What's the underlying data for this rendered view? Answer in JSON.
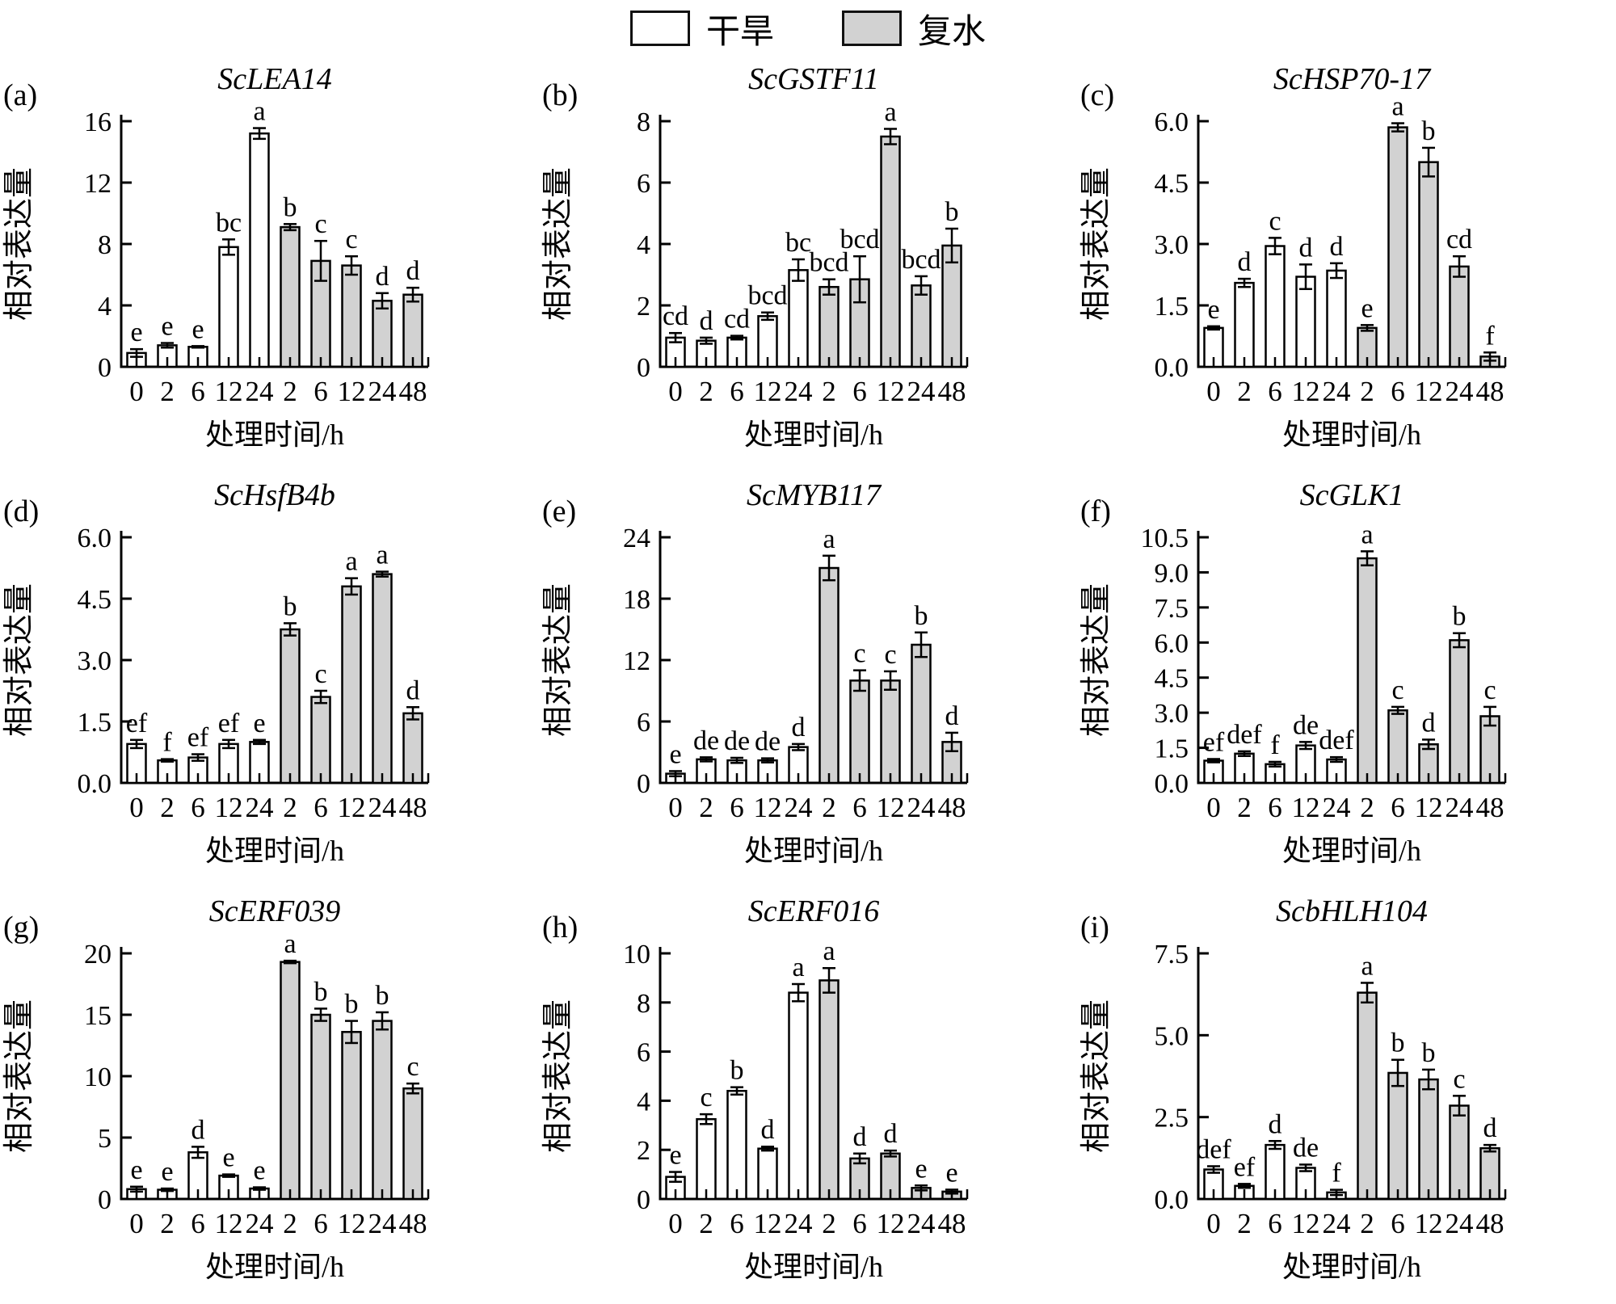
{
  "legend": {
    "items": [
      {
        "label": "干旱",
        "fill": "#ffffff"
      },
      {
        "label": "复水",
        "fill": "#d2d2d2"
      }
    ]
  },
  "shared": {
    "ylabel": "相对表达量",
    "xlabel": "处理时间/h"
  },
  "colors": {
    "bar_drought": "#ffffff",
    "bar_rewater": "#d2d2d2",
    "axis": "#000000"
  },
  "chart_data": [
    {
      "type": "bar",
      "panel": "(a)",
      "title": "ScLEA14",
      "ymax": 16,
      "yticks": [
        0,
        4,
        8,
        12,
        16
      ],
      "ytick_labels": [
        "0",
        "4",
        "8",
        "12",
        "16"
      ],
      "series": [
        {
          "name": "干旱",
          "x": [
            "0",
            "2",
            "6",
            "12",
            "24"
          ],
          "values": [
            0.9,
            1.4,
            1.3,
            7.8,
            15.2
          ],
          "errors": [
            0.25,
            0.15,
            0.05,
            0.5,
            0.35
          ],
          "letters": [
            "e",
            "e",
            "e",
            "bc",
            "a"
          ]
        },
        {
          "name": "复水",
          "x": [
            "2",
            "6",
            "12",
            "24",
            "48"
          ],
          "values": [
            9.1,
            6.9,
            6.6,
            4.3,
            4.7
          ],
          "errors": [
            0.2,
            1.3,
            0.6,
            0.5,
            0.45
          ],
          "letters": [
            "b",
            "c",
            "c",
            "d",
            "d"
          ]
        }
      ]
    },
    {
      "type": "bar",
      "panel": "(b)",
      "title": "ScGSTF11",
      "ymax": 8,
      "yticks": [
        0,
        2,
        4,
        6,
        8
      ],
      "ytick_labels": [
        "0",
        "2",
        "4",
        "6",
        "8"
      ],
      "series": [
        {
          "name": "干旱",
          "x": [
            "0",
            "2",
            "6",
            "12",
            "24"
          ],
          "values": [
            0.95,
            0.85,
            0.95,
            1.65,
            3.15
          ],
          "errors": [
            0.15,
            0.1,
            0.06,
            0.12,
            0.35
          ],
          "letters": [
            "cd",
            "d",
            "cd",
            "bcd",
            "bc"
          ]
        },
        {
          "name": "复水",
          "x": [
            "2",
            "6",
            "12",
            "24",
            "48"
          ],
          "values": [
            2.6,
            2.85,
            7.5,
            2.65,
            3.95
          ],
          "errors": [
            0.25,
            0.75,
            0.25,
            0.3,
            0.55
          ],
          "letters": [
            "bcd",
            "bcd",
            "a",
            "bcd",
            "b"
          ]
        }
      ]
    },
    {
      "type": "bar",
      "panel": "(c)",
      "title": "ScHSP70-17",
      "ymax": 6,
      "yticks": [
        0,
        1.5,
        3,
        4.5,
        6
      ],
      "ytick_labels": [
        "0.0",
        "1.5",
        "3.0",
        "4.5",
        "6.0"
      ],
      "series": [
        {
          "name": "干旱",
          "x": [
            "0",
            "2",
            "6",
            "12",
            "24"
          ],
          "values": [
            0.95,
            2.05,
            2.95,
            2.2,
            2.35
          ],
          "errors": [
            0.04,
            0.1,
            0.2,
            0.3,
            0.18
          ],
          "letters": [
            "e",
            "d",
            "c",
            "d",
            "d"
          ]
        },
        {
          "name": "复水",
          "x": [
            "2",
            "6",
            "12",
            "24",
            "48"
          ],
          "values": [
            0.95,
            5.85,
            5.0,
            2.45,
            0.25
          ],
          "errors": [
            0.07,
            0.1,
            0.35,
            0.25,
            0.1
          ],
          "letters": [
            "e",
            "a",
            "b",
            "cd",
            "f"
          ]
        }
      ]
    },
    {
      "type": "bar",
      "panel": "(d)",
      "title": "ScHsfB4b",
      "ymax": 6,
      "yticks": [
        0,
        1.5,
        3,
        4.5,
        6
      ],
      "ytick_labels": [
        "0.0",
        "1.5",
        "3.0",
        "4.5",
        "6.0"
      ],
      "series": [
        {
          "name": "干旱",
          "x": [
            "0",
            "2",
            "6",
            "12",
            "24"
          ],
          "values": [
            0.95,
            0.55,
            0.62,
            0.95,
            1.0
          ],
          "errors": [
            0.1,
            0.03,
            0.08,
            0.1,
            0.05
          ],
          "letters": [
            "ef",
            "f",
            "ef",
            "ef",
            "e"
          ]
        },
        {
          "name": "复水",
          "x": [
            "2",
            "6",
            "12",
            "24",
            "48"
          ],
          "values": [
            3.75,
            2.1,
            4.8,
            5.1,
            1.7
          ],
          "errors": [
            0.15,
            0.15,
            0.2,
            0.06,
            0.15
          ],
          "letters": [
            "b",
            "c",
            "a",
            "a",
            "d"
          ]
        }
      ]
    },
    {
      "type": "bar",
      "panel": "(e)",
      "title": "ScMYB117",
      "ymax": 24,
      "yticks": [
        0,
        6,
        12,
        18,
        24
      ],
      "ytick_labels": [
        "0",
        "6",
        "12",
        "18",
        "24"
      ],
      "series": [
        {
          "name": "干旱",
          "x": [
            "0",
            "2",
            "6",
            "12",
            "24"
          ],
          "values": [
            0.9,
            2.3,
            2.2,
            2.2,
            3.5
          ],
          "errors": [
            0.25,
            0.2,
            0.25,
            0.2,
            0.3
          ],
          "letters": [
            "e",
            "de",
            "de",
            "de",
            "d"
          ]
        },
        {
          "name": "复水",
          "x": [
            "2",
            "6",
            "12",
            "24",
            "48"
          ],
          "values": [
            21.0,
            10.0,
            10.0,
            13.5,
            4.0
          ],
          "errors": [
            1.2,
            1.0,
            0.9,
            1.2,
            0.9
          ],
          "letters": [
            "a",
            "c",
            "c",
            "b",
            "d"
          ]
        }
      ]
    },
    {
      "type": "bar",
      "panel": "(f)",
      "title": "ScGLK1",
      "ymax": 10.5,
      "yticks": [
        0,
        1.5,
        3,
        4.5,
        6,
        7.5,
        9,
        10.5
      ],
      "ytick_labels": [
        "0.0",
        "1.5",
        "3.0",
        "4.5",
        "6.0",
        "7.5",
        "9.0",
        "10.5"
      ],
      "series": [
        {
          "name": "干旱",
          "x": [
            "0",
            "2",
            "6",
            "12",
            "24"
          ],
          "values": [
            0.95,
            1.25,
            0.8,
            1.6,
            1.0
          ],
          "errors": [
            0.07,
            0.1,
            0.1,
            0.15,
            0.1
          ],
          "letters": [
            "ef",
            "def",
            "f",
            "de",
            "def"
          ]
        },
        {
          "name": "复水",
          "x": [
            "2",
            "6",
            "12",
            "24",
            "48"
          ],
          "values": [
            9.6,
            3.1,
            1.65,
            6.1,
            2.85
          ],
          "errors": [
            0.3,
            0.15,
            0.2,
            0.3,
            0.4
          ],
          "letters": [
            "a",
            "c",
            "d",
            "b",
            "c"
          ]
        }
      ]
    },
    {
      "type": "bar",
      "panel": "(g)",
      "title": "ScERF039",
      "ymax": 20,
      "yticks": [
        0,
        5,
        10,
        15,
        20
      ],
      "ytick_labels": [
        "0",
        "5",
        "10",
        "15",
        "20"
      ],
      "series": [
        {
          "name": "干旱",
          "x": [
            "0",
            "2",
            "6",
            "12",
            "24"
          ],
          "values": [
            0.8,
            0.75,
            3.8,
            1.9,
            0.85
          ],
          "errors": [
            0.2,
            0.1,
            0.45,
            0.1,
            0.1
          ],
          "letters": [
            "e",
            "e",
            "d",
            "e",
            "e"
          ]
        },
        {
          "name": "复水",
          "x": [
            "2",
            "6",
            "12",
            "24",
            "48"
          ],
          "values": [
            19.3,
            15.0,
            13.6,
            14.5,
            9.0
          ],
          "errors": [
            0.1,
            0.5,
            0.9,
            0.7,
            0.4
          ],
          "letters": [
            "a",
            "b",
            "b",
            "b",
            "c"
          ]
        }
      ]
    },
    {
      "type": "bar",
      "panel": "(h)",
      "title": "ScERF016",
      "ymax": 10,
      "yticks": [
        0,
        2,
        4,
        6,
        8,
        10
      ],
      "ytick_labels": [
        "0",
        "2",
        "4",
        "6",
        "8",
        "10"
      ],
      "series": [
        {
          "name": "干旱",
          "x": [
            "0",
            "2",
            "6",
            "12",
            "24"
          ],
          "values": [
            0.9,
            3.25,
            4.4,
            2.05,
            8.4
          ],
          "errors": [
            0.2,
            0.2,
            0.15,
            0.08,
            0.35
          ],
          "letters": [
            "e",
            "c",
            "b",
            "d",
            "a"
          ]
        },
        {
          "name": "复水",
          "x": [
            "2",
            "6",
            "12",
            "24",
            "48"
          ],
          "values": [
            8.9,
            1.65,
            1.85,
            0.45,
            0.3
          ],
          "errors": [
            0.5,
            0.2,
            0.12,
            0.1,
            0.08
          ],
          "letters": [
            "a",
            "d",
            "d",
            "e",
            "e"
          ]
        }
      ]
    },
    {
      "type": "bar",
      "panel": "(i)",
      "title": "ScbHLH104",
      "ymax": 7.5,
      "yticks": [
        0,
        2.5,
        5,
        7.5
      ],
      "ytick_labels": [
        "0.0",
        "2.5",
        "5.0",
        "7.5"
      ],
      "series": [
        {
          "name": "干旱",
          "x": [
            "0",
            "2",
            "6",
            "12",
            "24"
          ],
          "values": [
            0.9,
            0.4,
            1.65,
            0.95,
            0.2
          ],
          "errors": [
            0.1,
            0.06,
            0.12,
            0.1,
            0.08
          ],
          "letters": [
            "def",
            "ef",
            "d",
            "de",
            "f"
          ]
        },
        {
          "name": "复水",
          "x": [
            "2",
            "6",
            "12",
            "24",
            "48"
          ],
          "values": [
            6.3,
            3.85,
            3.65,
            2.85,
            1.55
          ],
          "errors": [
            0.3,
            0.4,
            0.3,
            0.3,
            0.1
          ],
          "letters": [
            "a",
            "b",
            "b",
            "c",
            "d"
          ]
        }
      ]
    }
  ]
}
